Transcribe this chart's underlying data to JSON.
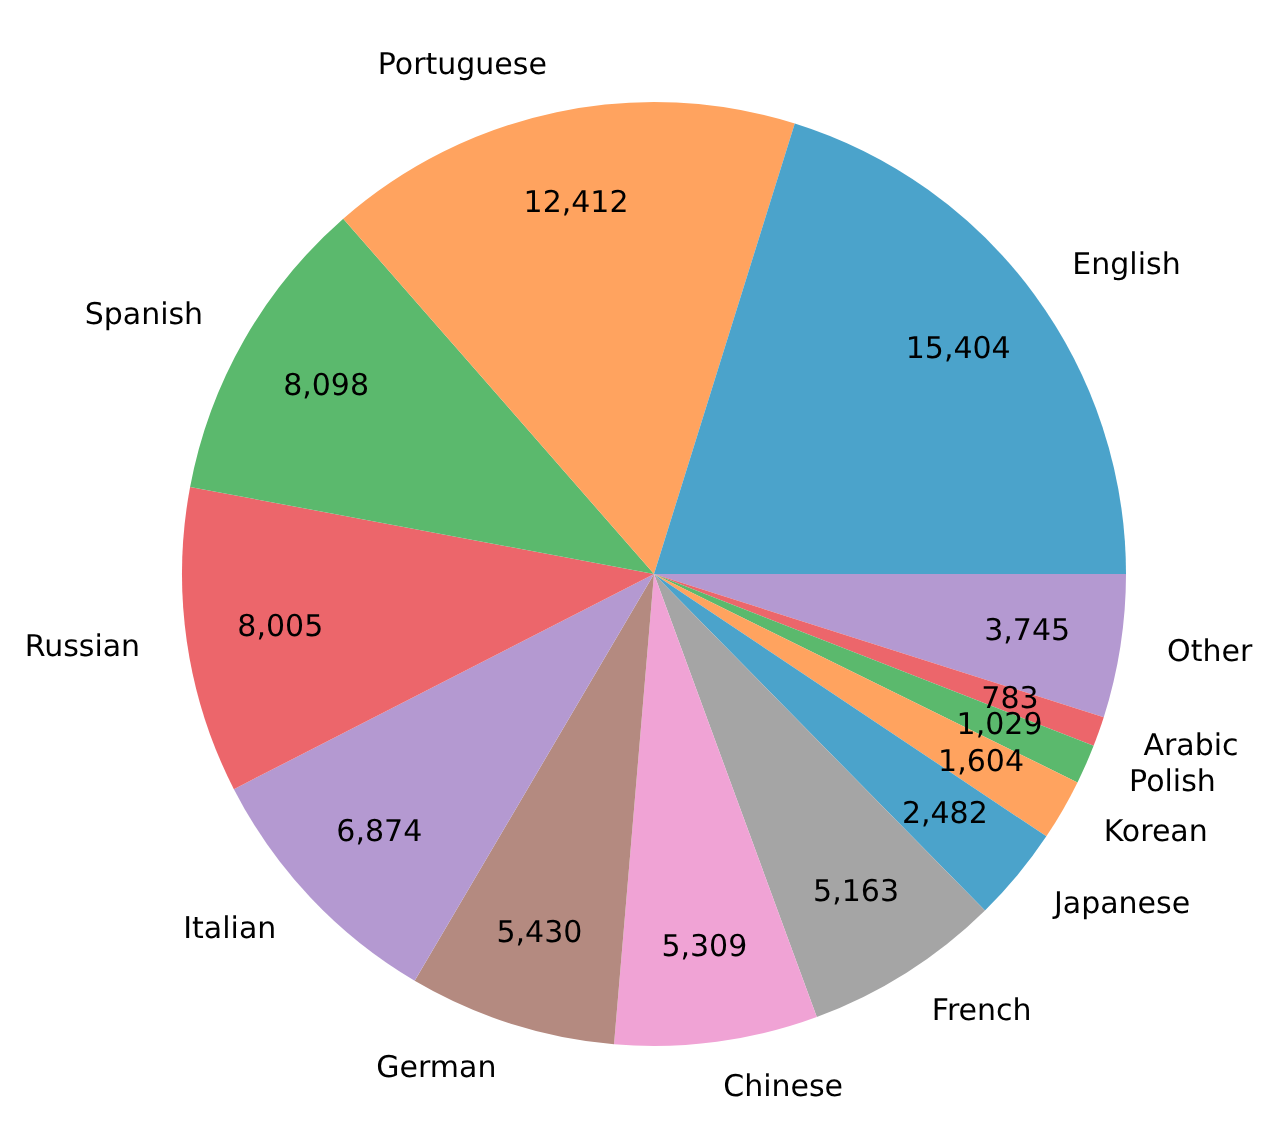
{
  "chart_data": {
    "type": "pie",
    "categories": [
      "English",
      "Portuguese",
      "Spanish",
      "Russian",
      "Italian",
      "German",
      "Chinese",
      "French",
      "Japanese",
      "Korean",
      "Polish",
      "Arabic",
      "Other"
    ],
    "values": [
      15404,
      12412,
      8098,
      8005,
      6874,
      5430,
      5309,
      5163,
      2482,
      1604,
      1029,
      783,
      3745
    ],
    "colors": [
      "#4ba3cb",
      "#ffa35f",
      "#5bb96d",
      "#ec666b",
      "#b499d1",
      "#b48a80",
      "#f0a3d5",
      "#a5a5a5",
      "#4ba3cb",
      "#ffa35f",
      "#5bb96d",
      "#ec666b",
      "#b499d1"
    ],
    "value_labels": [
      "15,404",
      "12,412",
      "8,098",
      "8,005",
      "6,874",
      "5,430",
      "5,309",
      "5,163",
      "2,482",
      "1,604",
      "1,029",
      "783",
      "3,745"
    ],
    "legend": false
  }
}
